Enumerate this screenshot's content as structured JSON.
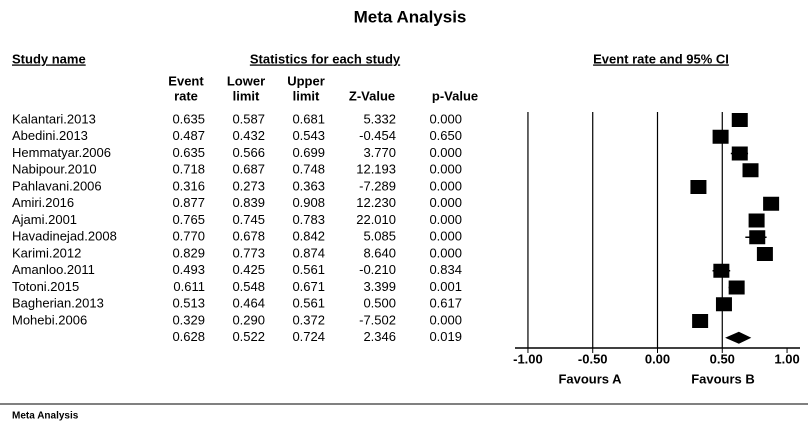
{
  "chart_data": {
    "type": "forest",
    "title": "Meta Analysis",
    "study_header": "Study name",
    "stats_header": "Statistics for each study",
    "plot_header": "Event rate and 95% CI",
    "footer": "Meta Analysis",
    "categories": [
      "Kalantari.2013",
      "Abedini.2013",
      "Hemmatyar.2006",
      "Nabipour.2010",
      "Pahlavani.2006",
      "Amiri.2016",
      "Ajami.2001",
      "Havadinejad.2008",
      "Karimi.2012",
      "Amanloo.2011",
      "Totoni.2015",
      "Bagherian.2013",
      "Mohebi.2006",
      null
    ],
    "columns": [
      {
        "header": [
          "Event",
          "rate"
        ],
        "values": [
          0.635,
          0.487,
          0.635,
          0.718,
          0.316,
          0.877,
          0.765,
          0.77,
          0.829,
          0.493,
          0.611,
          0.513,
          0.329,
          0.628
        ],
        "value_labels": [
          "0.635",
          "0.487",
          "0.635",
          "0.718",
          "0.316",
          "0.877",
          "0.765",
          "0.770",
          "0.829",
          "0.493",
          "0.611",
          "0.513",
          "0.329",
          "0.628"
        ]
      },
      {
        "header": [
          "Lower",
          "limit"
        ],
        "values": [
          0.587,
          0.432,
          0.566,
          0.687,
          0.273,
          0.839,
          0.745,
          0.678,
          0.773,
          0.425,
          0.548,
          0.464,
          0.29,
          0.522
        ],
        "value_labels": [
          "0.587",
          "0.432",
          "0.566",
          "0.687",
          "0.273",
          "0.839",
          "0.745",
          "0.678",
          "0.773",
          "0.425",
          "0.548",
          "0.464",
          "0.290",
          "0.522"
        ]
      },
      {
        "header": [
          "Upper",
          "limit"
        ],
        "values": [
          0.681,
          0.543,
          0.699,
          0.748,
          0.363,
          0.908,
          0.783,
          0.842,
          0.874,
          0.561,
          0.671,
          0.561,
          0.372,
          0.724
        ],
        "value_labels": [
          "0.681",
          "0.543",
          "0.699",
          "0.748",
          "0.363",
          "0.908",
          "0.783",
          "0.842",
          "0.874",
          "0.561",
          "0.671",
          "0.561",
          "0.372",
          "0.724"
        ]
      },
      {
        "header": [
          "Z-Value"
        ],
        "values": [
          5.332,
          -0.454,
          3.77,
          12.193,
          -7.289,
          12.23,
          22.01,
          5.085,
          8.64,
          -0.21,
          3.399,
          0.5,
          -7.502,
          2.346
        ],
        "value_labels": [
          "5.332",
          "-0.454",
          "3.770",
          "12.193",
          "-7.289",
          "12.230",
          "22.010",
          "5.085",
          "8.640",
          "-0.210",
          "3.399",
          "0.500",
          "-7.502",
          "2.346"
        ]
      },
      {
        "header": [
          "p-Value"
        ],
        "values": [
          0.0,
          0.65,
          0.0,
          0.0,
          0.0,
          0.0,
          0.0,
          0.0,
          0.0,
          0.834,
          0.001,
          0.617,
          0.0,
          0.019
        ],
        "value_labels": [
          "0.000",
          "0.650",
          "0.000",
          "0.000",
          "0.000",
          "0.000",
          "0.000",
          "0.000",
          "0.000",
          "0.834",
          "0.001",
          "0.617",
          "0.000",
          "0.019"
        ]
      }
    ],
    "xlim": [
      -1.1,
      1.1
    ],
    "xticks": [
      {
        "value": -1,
        "label": "-1.00"
      },
      {
        "value": -0.5,
        "label": "-0.50"
      },
      {
        "value": 0,
        "label": "0.00"
      },
      {
        "value": 0.5,
        "label": "0.50"
      },
      {
        "value": 1,
        "label": "1.00"
      }
    ],
    "favours": [
      "Favours A",
      "Favours B"
    ],
    "color": "#000000"
  }
}
